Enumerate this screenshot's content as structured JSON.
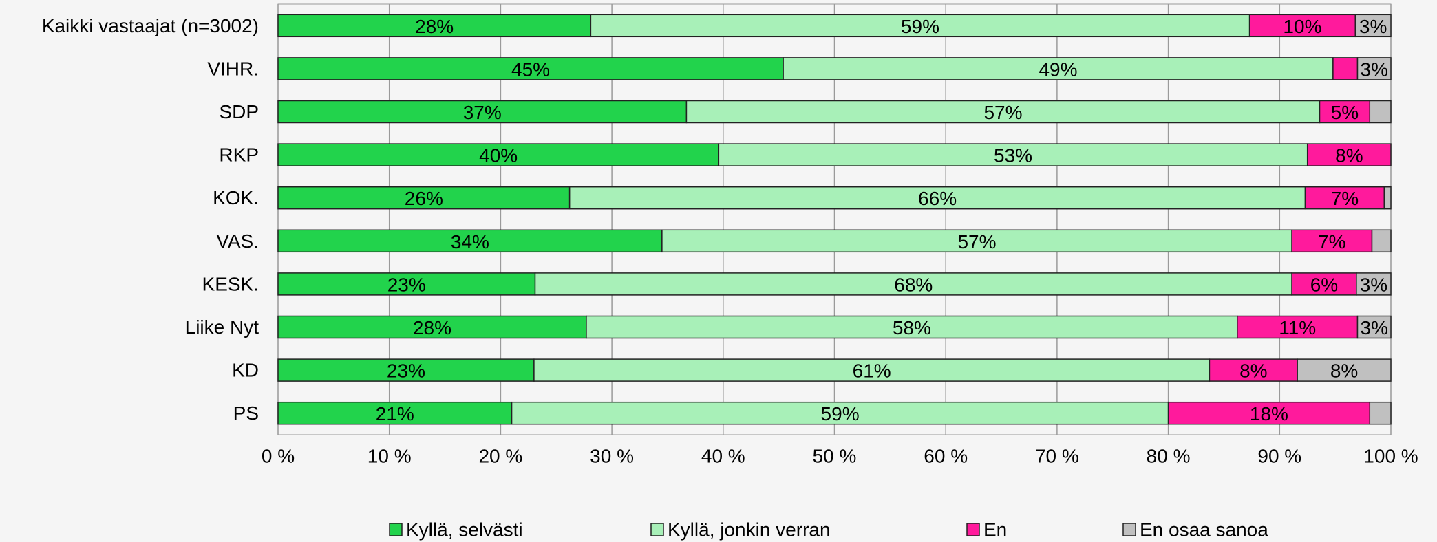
{
  "chart_data": {
    "type": "stacked_bar_horizontal",
    "categories": [
      "Kaikki vastaajat (n=3002)",
      "VIHR.",
      "SDP",
      "RKP",
      "KOK.",
      "VAS.",
      "KESK.",
      "Liike Nyt",
      "KD",
      "PS"
    ],
    "series": [
      {
        "name": "Kyllä, selvästi",
        "color": "#22d34c",
        "values": [
          28.1,
          45.4,
          36.7,
          39.6,
          26.2,
          34.5,
          23.1,
          27.7,
          23,
          21
        ],
        "value_labels": [
          "28%",
          "45%",
          "37%",
          "40%",
          "26%",
          "34%",
          "23%",
          "28%",
          "23%",
          "21%"
        ]
      },
      {
        "name": "Kyllä, jonkin verran",
        "color": "#a8f0b8",
        "values": [
          59.2,
          49.4,
          56.9,
          52.9,
          66.1,
          56.6,
          68,
          58.5,
          60.7,
          59
        ],
        "value_labels": [
          "59%",
          "49%",
          "57%",
          "53%",
          "66%",
          "57%",
          "68%",
          "58%",
          "61%",
          "59%"
        ]
      },
      {
        "name": "En",
        "color": "#ff1a9c",
        "values": [
          9.5,
          2.2,
          4.5,
          7.5,
          7.1,
          7.2,
          5.8,
          10.8,
          7.9,
          18.1
        ],
        "value_labels": [
          "10%",
          null,
          "5%",
          "8%",
          "7%",
          "7%",
          "6%",
          "11%",
          "8%",
          "18%"
        ]
      },
      {
        "name": "En osaa sanoa",
        "color": "#c0c0c0",
        "values": [
          3.2,
          3,
          1.9,
          0,
          0.6,
          1.7,
          3.1,
          3.0,
          8.4,
          1.9
        ],
        "value_labels": [
          "3%",
          "3%",
          null,
          null,
          null,
          null,
          "3%",
          "3%",
          "8%",
          null
        ]
      }
    ],
    "xlim": [
      0,
      100
    ],
    "xticks": [
      {
        "value": 0,
        "label": "0 %"
      },
      {
        "value": 10,
        "label": "10 %"
      },
      {
        "value": 20,
        "label": "20 %"
      },
      {
        "value": 30,
        "label": "30 %"
      },
      {
        "value": 40,
        "label": "40 %"
      },
      {
        "value": 50,
        "label": "50 %"
      },
      {
        "value": 60,
        "label": "60 %"
      },
      {
        "value": 70,
        "label": "70 %"
      },
      {
        "value": 80,
        "label": "80 %"
      },
      {
        "value": 90,
        "label": "90 %"
      },
      {
        "value": 100,
        "label": "100 %"
      }
    ],
    "grid": true,
    "legend": "bottom"
  }
}
